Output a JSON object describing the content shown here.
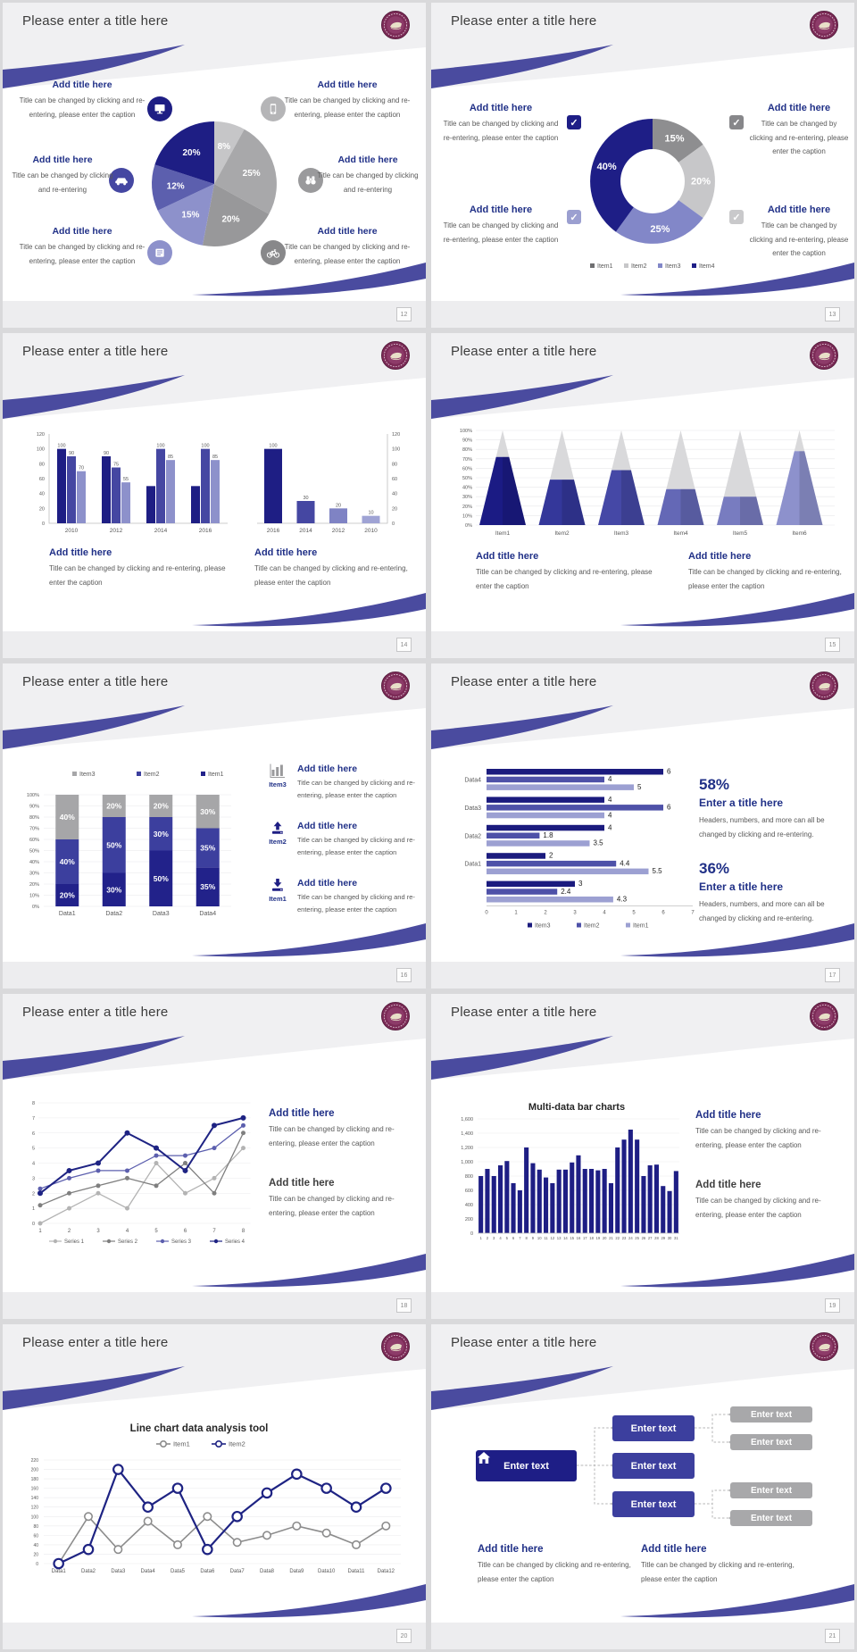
{
  "theme": {
    "accent": "#4a4b9f",
    "navy": "#1e1e84",
    "mid_blue": "#4547a2",
    "purple": "#7f83c4",
    "light_purple": "#9fa3d4",
    "heading_color": "#203087",
    "caption_color": "#595959",
    "slide_title_color": "#3c3c3c",
    "header_gray": "#f0f0f2",
    "footer_gray": "#ededef"
  },
  "common": {
    "slide_title": "Please enter a title here",
    "add_title": "Add title here",
    "caption_long": "Title can be changed by clicking and re-entering, please enter the caption",
    "caption_short": "Title can be changed by clicking and re-entering",
    "logo_name": "university-badge-logo"
  },
  "slides": [
    {
      "name": "pie-infographic",
      "page_number": "12",
      "title": "Please enter a title here",
      "callouts": [
        {
          "pos": "left-top",
          "icon": "monitor-icon",
          "icon_color": "#1e1e84",
          "title": "Add title here",
          "caption": "Title can be changed by clicking and re-entering, please enter the caption"
        },
        {
          "pos": "left-mid",
          "icon": "car-icon",
          "icon_color": "#4547a2",
          "title": "Add title here",
          "caption": "Title can be changed by clicking and re-entering"
        },
        {
          "pos": "left-bottom",
          "icon": "book-icon",
          "icon_color": "#8d91cb",
          "title": "Add title here",
          "caption": "Title can be changed by clicking and re-entering, please enter the caption"
        },
        {
          "pos": "right-top",
          "icon": "phone-icon",
          "icon_color": "#b5b5b7",
          "title": "Add title here",
          "caption": "Title can be changed by clicking and re-entering, please enter the caption"
        },
        {
          "pos": "right-mid",
          "icon": "binoculars-icon",
          "icon_color": "#9a9a9c",
          "title": "Add title here",
          "caption": "Title can be changed by clicking and re-entering"
        },
        {
          "pos": "right-bottom",
          "icon": "bicycle-icon",
          "icon_color": "#88888a",
          "title": "Add title here",
          "caption": "Title can be changed by clicking and re-entering, please enter the caption"
        }
      ],
      "chart_data": {
        "type": "pie",
        "labels": [
          "8%",
          "25%",
          "20%",
          "15%",
          "12%",
          "20%"
        ],
        "values": [
          8,
          25,
          20,
          15,
          12,
          20
        ],
        "colors": [
          "#c6c6c8",
          "#a8a8aa",
          "#98989a",
          "#8d91cb",
          "#5c5fae",
          "#1e1e84"
        ],
        "start": "top",
        "direction": "clockwise"
      }
    },
    {
      "name": "donut-infographic",
      "page_number": "13",
      "title": "Please enter a title here",
      "callouts": [
        {
          "pos": "left-top",
          "icon": "checkbox-icon",
          "icon_color": "#1e1e86",
          "title": "Add title here",
          "caption": "Title can be changed by clicking and re-entering, please enter the caption"
        },
        {
          "pos": "left-bottom",
          "icon": "checkbox-icon",
          "icon_color": "#9b9fd0",
          "title": "Add title here",
          "caption": "Title can be changed by clicking and re-entering, please enter the caption"
        },
        {
          "pos": "right-top",
          "icon": "checkbox-icon",
          "icon_color": "#87878a",
          "title": "Add title here",
          "caption": "Title can be changed by clicking and re-entering, please enter the caption"
        },
        {
          "pos": "right-bottom",
          "icon": "checkbox-icon",
          "icon_color": "#c9c9cb",
          "title": "Add title here",
          "caption": "Title can be changed by clicking and re-entering, please enter the caption"
        }
      ],
      "chart_data": {
        "type": "donut",
        "labels": [
          "15%",
          "20%",
          "25%",
          "40%"
        ],
        "values": [
          15,
          20,
          25,
          40
        ],
        "colors": [
          "#8e8e90",
          "#c7c7c9",
          "#8287c8",
          "#1e1e86"
        ],
        "legend": [
          {
            "label": "Item1",
            "color": "#6f6f71"
          },
          {
            "label": "Item2",
            "color": "#c7c7c9"
          },
          {
            "label": "Item3",
            "color": "#8287c8"
          },
          {
            "label": "Item4",
            "color": "#1e1e86"
          }
        ]
      }
    },
    {
      "name": "bar-chart-comparison",
      "page_number": "14",
      "title": "Please enter a title here",
      "captions": [
        {
          "title": "Add title here",
          "caption": "Title can be changed by clicking and re-entering, please enter the caption"
        },
        {
          "title": "Add title here",
          "caption": "Title can be changed by clicking and re-entering, please enter the caption"
        }
      ],
      "chart_data": [
        {
          "type": "bar",
          "categories": [
            "2010",
            "2012",
            "2014",
            "2016"
          ],
          "ylim": [
            0,
            120
          ],
          "yticks": [
            0,
            20,
            40,
            60,
            80,
            100,
            120
          ],
          "axis_side": "left",
          "series": [
            {
              "name": "series1",
              "color": "#1e1e84",
              "values": [
                100,
                90,
                50,
                50
              ],
              "shown_labels": [
                100,
                90,
                null,
                null
              ]
            },
            {
              "name": "series2",
              "color": "#4547a2",
              "values": [
                90,
                75,
                100,
                100
              ],
              "shown_labels": [
                90,
                75,
                100,
                100
              ]
            },
            {
              "name": "series3",
              "color": "#8d91cb",
              "values": [
                70,
                55,
                85,
                85
              ],
              "shown_labels": [
                70,
                55,
                85,
                85
              ]
            }
          ]
        },
        {
          "type": "bar",
          "categories": [
            "2016",
            "2014",
            "2012",
            "2010"
          ],
          "values": [
            100,
            30,
            20,
            10
          ],
          "shown_labels": [
            100,
            30,
            20,
            10
          ],
          "colors": [
            "#1e1e84",
            "#4547a2",
            "#7f83c4",
            "#9fa3d4"
          ],
          "ylim": [
            0,
            120
          ],
          "yticks": [
            0,
            20,
            40,
            60,
            80,
            100,
            120
          ],
          "axis_side": "right"
        }
      ]
    },
    {
      "name": "cone-chart",
      "page_number": "15",
      "title": "Please enter a title here",
      "captions": [
        {
          "title": "Add title here",
          "caption": "Title can be changed by clicking and re-entering, please enter the caption"
        },
        {
          "title": "Add title here",
          "caption": "Title can be changed by clicking and re-entering, please enter the caption"
        }
      ],
      "chart_data": {
        "type": "cone-bar",
        "categories": [
          "Item1",
          "Item2",
          "Item3",
          "Item4",
          "Item5",
          "Item6"
        ],
        "values_pct": [
          72,
          48,
          58,
          38,
          30,
          78
        ],
        "colors": [
          "#1b1b84",
          "#34379a",
          "#4548a6",
          "#6468b6",
          "#787cc0",
          "#8d91cc"
        ],
        "top_color": "#d9d9db",
        "ylim": [
          0,
          100
        ],
        "ytick_step": 10,
        "ytick_suffix": "%"
      }
    },
    {
      "name": "stacked-bar-features",
      "page_number": "16",
      "title": "Please enter a title here",
      "features": [
        {
          "icon": "bar-chart-icon",
          "icon_label": "Item3",
          "title": "Add title here",
          "caption": "Title can be changed by clicking and re-entering, please enter the caption"
        },
        {
          "icon": "upload-icon",
          "icon_label": "Item2",
          "title": "Add title here",
          "caption": "Title can be changed by clicking and re-entering, please enter the caption"
        },
        {
          "icon": "download-icon",
          "icon_label": "Item1",
          "title": "Add title here",
          "caption": "Title can be changed by clicking and re-entering, please enter the caption"
        }
      ],
      "chart_data": {
        "type": "stacked-bar-100",
        "categories": [
          "Data1",
          "Data2",
          "Data3",
          "Data4"
        ],
        "legend_order": [
          "Item3",
          "Item2",
          "Item1"
        ],
        "series": [
          {
            "name": "Item1",
            "color": "#22228a",
            "values": [
              20,
              30,
              50,
              35
            ]
          },
          {
            "name": "Item2",
            "color": "#3c3f9e",
            "values": [
              40,
              50,
              30,
              35
            ]
          },
          {
            "name": "Item3",
            "color": "#a6a6a8",
            "values": [
              40,
              20,
              20,
              30
            ]
          }
        ],
        "ylim": [
          0,
          100
        ],
        "ytick_step": 10,
        "ytick_suffix": "%"
      }
    },
    {
      "name": "horizontal-bar-stats",
      "page_number": "17",
      "title": "Please enter a title here",
      "stats": [
        {
          "value": "58%",
          "title": "Enter a title here",
          "body": "Headers, numbers, and more can all be changed by clicking and re-entering."
        },
        {
          "value": "36%",
          "title": "Enter a title here",
          "body": "Headers, numbers, and more can all be changed by clicking and re-entering."
        }
      ],
      "chart_data": {
        "type": "bar-horizontal",
        "xlim": [
          0,
          7
        ],
        "xticks": [
          0,
          1,
          2,
          3,
          4,
          5,
          6,
          7
        ],
        "series_names": [
          "Item3",
          "Item2",
          "Item1"
        ],
        "series_colors": [
          "#1b1b7e",
          "#4e51a8",
          "#9ca0d2"
        ],
        "groups": [
          {
            "label": "Data4",
            "values": [
              6,
              4,
              5
            ]
          },
          {
            "label": "Data3",
            "values": [
              4,
              6,
              4
            ]
          },
          {
            "label": "Data2",
            "values": [
              4,
              1.8,
              3.5
            ]
          },
          {
            "label": "Data1",
            "values": [
              2,
              4.4,
              5.5
            ]
          },
          {
            "label": "",
            "values": [
              3,
              2.4,
              4.3
            ]
          }
        ]
      }
    },
    {
      "name": "multi-series-line",
      "page_number": "18",
      "title": "Please enter a title here",
      "captions": [
        {
          "title": "Add title here",
          "title_color": "#203087",
          "caption": "Title can be changed by clicking and re-entering, please enter the caption"
        },
        {
          "title": "Add title here",
          "title_color": "#3f3f3f",
          "caption": "Title can be changed by clicking and re-entering, please enter the caption"
        }
      ],
      "chart_data": {
        "type": "line",
        "x": [
          1,
          2,
          3,
          4,
          5,
          6,
          7,
          8
        ],
        "ylim": [
          0,
          8
        ],
        "ytick_step": 1,
        "series": [
          {
            "name": "Series 1",
            "color": "#b3b3b3",
            "values": [
              0,
              1,
              2,
              1,
              4,
              2,
              3,
              5
            ]
          },
          {
            "name": "Series 2",
            "color": "#7f7f7f",
            "values": [
              1.2,
              2,
              2.5,
              3,
              2.5,
              4,
              2,
              6
            ]
          },
          {
            "name": "Series 3",
            "color": "#5c5fae",
            "values": [
              2.3,
              3,
              3.5,
              3.5,
              4.5,
              4.5,
              5,
              6.5
            ]
          },
          {
            "name": "Series 4",
            "color": "#1e2383",
            "values": [
              2,
              3.5,
              4,
              6,
              5,
              3.5,
              6.5,
              7
            ]
          }
        ],
        "legend_position": "bottom",
        "grid": true
      }
    },
    {
      "name": "multi-data-bars",
      "page_number": "19",
      "title": "Please enter a title here",
      "captions": [
        {
          "title": "Add title here",
          "title_color": "#203087",
          "caption": "Title can be changed by clicking and re-entering, please enter the caption"
        },
        {
          "title": "Add title here",
          "title_color": "#3f3f3f",
          "caption": "Title can be changed by clicking and re-entering, please enter the caption"
        }
      ],
      "chart_data": {
        "type": "bar",
        "title": "Multi-data bar charts",
        "bar_color": "#1e1e84",
        "ylim": [
          0,
          1600
        ],
        "ytick_step": 200,
        "grid": true,
        "x_labels": [
          "1",
          "2",
          "3",
          "4",
          "5",
          "6",
          "7",
          "8",
          "9",
          "10",
          "11",
          "12",
          "13",
          "14",
          "15",
          "16",
          "17",
          "18",
          "19",
          "20",
          "21",
          "22",
          "23",
          "24",
          "25",
          "26",
          "27",
          "28",
          "29",
          "30",
          "31"
        ],
        "values": [
          800,
          900,
          800,
          950,
          1010,
          700,
          600,
          1200,
          980,
          890,
          780,
          700,
          890,
          890,
          990,
          1090,
          900,
          900,
          880,
          900,
          700,
          1200,
          1310,
          1450,
          1310,
          800,
          950,
          960,
          660,
          590,
          870
        ]
      }
    },
    {
      "name": "two-line-analysis",
      "page_number": "20",
      "title": "Please enter a title here",
      "chart_data": {
        "type": "line",
        "title": "Line chart data analysis tool",
        "categories": [
          "Data1",
          "Data2",
          "Data3",
          "Data4",
          "Data5",
          "Data6",
          "Data7",
          "Data8",
          "Data9",
          "Data10",
          "Data11",
          "Data12"
        ],
        "ylim": [
          0,
          220
        ],
        "ytick_step": 20,
        "grid": true,
        "legend_position": "top",
        "series": [
          {
            "name": "Item1",
            "color": "#8c8c8c",
            "values": [
              0,
              100,
              30,
              90,
              40,
              100,
              45,
              60,
              80,
              65,
              40,
              80
            ]
          },
          {
            "name": "Item2",
            "color": "#1e2383",
            "values": [
              0,
              30,
              200,
              120,
              160,
              30,
              100,
              150,
              190,
              160,
              120,
              160
            ]
          }
        ]
      }
    },
    {
      "name": "org-diagram",
      "page_number": "21",
      "title": "Please enter a title here",
      "captions": [
        {
          "title": "Add title here",
          "caption": "Title can be changed by clicking and re-entering, please enter the caption"
        },
        {
          "title": "Add title here",
          "caption": "Title can be changed by clicking and re-entering, please enter the caption"
        }
      ],
      "diagram": {
        "root": {
          "label": "Enter text",
          "icon": "home-icon",
          "color": "#1e1e86"
        },
        "mid": [
          {
            "label": "Enter text"
          },
          {
            "label": "Enter text"
          },
          {
            "label": "Enter text"
          }
        ],
        "mid_color": "#3c3f9e",
        "leaves": [
          {
            "label": "Enter text"
          },
          {
            "label": "Enter text"
          },
          {
            "label": "Enter text"
          },
          {
            "label": "Enter text"
          }
        ],
        "leaf_color": "#a8a8aa"
      }
    }
  ]
}
